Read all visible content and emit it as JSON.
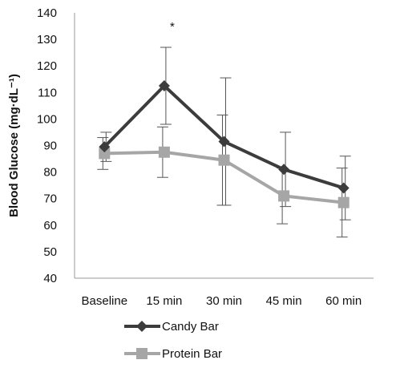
{
  "chart_data": {
    "type": "line",
    "categories": [
      "Baseline",
      "15 min",
      "30 min",
      "45 min",
      "60 min"
    ],
    "ylabel": "Blood Glucose (mg·dL⁻¹)",
    "xlabel": "",
    "ylim": [
      40,
      140
    ],
    "yticks": [
      40,
      50,
      60,
      70,
      80,
      90,
      100,
      110,
      120,
      130,
      140
    ],
    "grid": false,
    "legend_position": "bottom",
    "series": [
      {
        "name": "Candy Bar",
        "marker": "diamond",
        "color": "#3c3c3c",
        "values": [
          89.5,
          112.5,
          91.5,
          81,
          74
        ],
        "error": [
          5.5,
          14.5,
          24,
          14,
          12
        ]
      },
      {
        "name": "Protein Bar",
        "marker": "square",
        "color": "#a6a6a6",
        "values": [
          87,
          87.5,
          84.5,
          71,
          68.5
        ],
        "error": [
          6,
          9.5,
          17,
          10.5,
          13
        ]
      }
    ],
    "annotations": [
      {
        "category": "15 min",
        "text": "*"
      }
    ]
  }
}
